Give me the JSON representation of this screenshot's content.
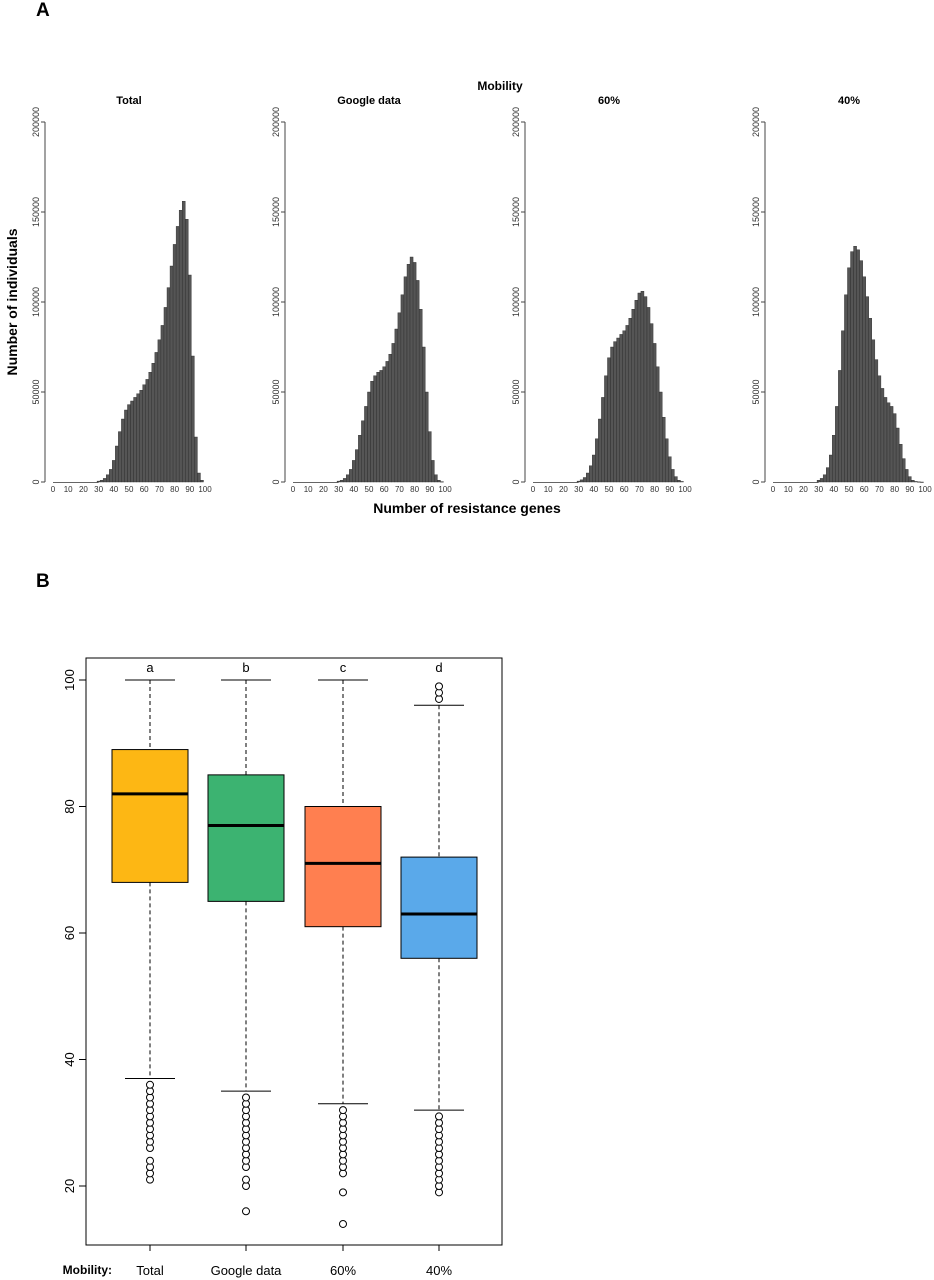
{
  "panel_labels": {
    "a": "A",
    "b": "B"
  },
  "chart_data": [
    {
      "type": "bar",
      "panel": "A",
      "title": "Mobility",
      "xlabel": "Number of resistance genes",
      "ylabel": "Number of individuals",
      "xlim": [
        0,
        100
      ],
      "ylim": [
        0,
        200000
      ],
      "xticks": [
        "0",
        "10",
        "20",
        "30",
        "40",
        "50",
        "60",
        "70",
        "80",
        "90",
        "100"
      ],
      "yticks": [
        "0",
        "50000",
        "100000",
        "150000",
        "200000"
      ],
      "bar_color": "#555555",
      "subplots": [
        {
          "name": "Total",
          "x": [
            30,
            32,
            34,
            36,
            38,
            40,
            42,
            44,
            46,
            48,
            50,
            52,
            54,
            56,
            58,
            60,
            62,
            64,
            66,
            68,
            70,
            72,
            74,
            76,
            78,
            80,
            82,
            84,
            86,
            88,
            90,
            92,
            94,
            96,
            98
          ],
          "values": [
            500,
            1000,
            2000,
            4000,
            7000,
            12000,
            20000,
            28000,
            35000,
            40000,
            43000,
            45000,
            47000,
            49000,
            51000,
            54000,
            57000,
            61000,
            66000,
            72000,
            79000,
            87000,
            97000,
            108000,
            120000,
            132000,
            142000,
            151000,
            156000,
            146000,
            115000,
            70000,
            25000,
            5000,
            1000
          ]
        },
        {
          "name": "Google data",
          "x": [
            30,
            32,
            34,
            36,
            38,
            40,
            42,
            44,
            46,
            48,
            50,
            52,
            54,
            56,
            58,
            60,
            62,
            64,
            66,
            68,
            70,
            72,
            74,
            76,
            78,
            80,
            82,
            84,
            86,
            88,
            90,
            92,
            94,
            96,
            98
          ],
          "values": [
            500,
            1000,
            2000,
            4000,
            7000,
            12000,
            18000,
            26000,
            34000,
            42000,
            50000,
            56000,
            59000,
            61000,
            62000,
            64000,
            67000,
            71000,
            77000,
            85000,
            94000,
            104000,
            114000,
            121000,
            125000,
            122000,
            112000,
            96000,
            75000,
            50000,
            28000,
            12000,
            4000,
            1000,
            200
          ]
        },
        {
          "name": "60%",
          "x": [
            30,
            32,
            34,
            36,
            38,
            40,
            42,
            44,
            46,
            48,
            50,
            52,
            54,
            56,
            58,
            60,
            62,
            64,
            66,
            68,
            70,
            72,
            74,
            76,
            78,
            80,
            82,
            84,
            86,
            88,
            90,
            92,
            94,
            96,
            98
          ],
          "values": [
            500,
            1200,
            2500,
            5000,
            9000,
            15000,
            24000,
            35000,
            47000,
            59000,
            69000,
            75000,
            78000,
            80000,
            82000,
            84000,
            87000,
            91000,
            96000,
            101000,
            105000,
            106000,
            103000,
            97000,
            88000,
            77000,
            64000,
            50000,
            36000,
            24000,
            14000,
            7000,
            3000,
            1000,
            300
          ]
        },
        {
          "name": "40%",
          "x": [
            30,
            32,
            34,
            36,
            38,
            40,
            42,
            44,
            46,
            48,
            50,
            52,
            54,
            56,
            58,
            60,
            62,
            64,
            66,
            68,
            70,
            72,
            74,
            76,
            78,
            80,
            82,
            84,
            86,
            88,
            90,
            92,
            94,
            96,
            98
          ],
          "values": [
            1000,
            2000,
            4000,
            8000,
            15000,
            26000,
            42000,
            62000,
            84000,
            104000,
            119000,
            128000,
            131000,
            129000,
            123000,
            114000,
            103000,
            91000,
            79000,
            68000,
            59000,
            52000,
            47000,
            44000,
            42000,
            38000,
            30000,
            21000,
            13000,
            7000,
            3000,
            1000,
            300,
            100,
            0
          ]
        }
      ]
    },
    {
      "type": "box",
      "panel": "B",
      "xlabel_prefix": "Mobility:",
      "categories": [
        "Total",
        "Google data",
        "60%",
        "40%"
      ],
      "significance_letters": [
        "a",
        "b",
        "c",
        "d"
      ],
      "ylim": [
        10,
        103
      ],
      "yticks": [
        "20",
        "40",
        "60",
        "80",
        "100"
      ],
      "colors": [
        "#FDB714",
        "#3CB371",
        "#FF7F50",
        "#5AA9EA"
      ],
      "boxes": [
        {
          "name": "Total",
          "whisker_low": 37,
          "q1": 68,
          "median": 82,
          "q3": 89,
          "whisker_high": 100,
          "outliers": [
            21,
            22,
            23,
            24,
            26,
            27,
            28,
            29,
            30,
            31,
            32,
            33,
            34,
            35,
            36
          ]
        },
        {
          "name": "Google data",
          "whisker_low": 35,
          "q1": 65,
          "median": 77,
          "q3": 85,
          "whisker_high": 100,
          "outliers": [
            16,
            20,
            21,
            23,
            24,
            25,
            26,
            27,
            28,
            29,
            30,
            31,
            32,
            33,
            34
          ]
        },
        {
          "name": "60%",
          "whisker_low": 33,
          "q1": 61,
          "median": 71,
          "q3": 80,
          "whisker_high": 100,
          "outliers": [
            14,
            19,
            22,
            23,
            24,
            25,
            26,
            27,
            28,
            29,
            30,
            31,
            32
          ]
        },
        {
          "name": "40%",
          "whisker_low": 32,
          "q1": 56,
          "median": 63,
          "q3": 72,
          "whisker_high": 96,
          "outliers": [
            19,
            20,
            21,
            22,
            23,
            24,
            25,
            26,
            27,
            28,
            29,
            30,
            31,
            97,
            98,
            99
          ]
        }
      ]
    }
  ]
}
